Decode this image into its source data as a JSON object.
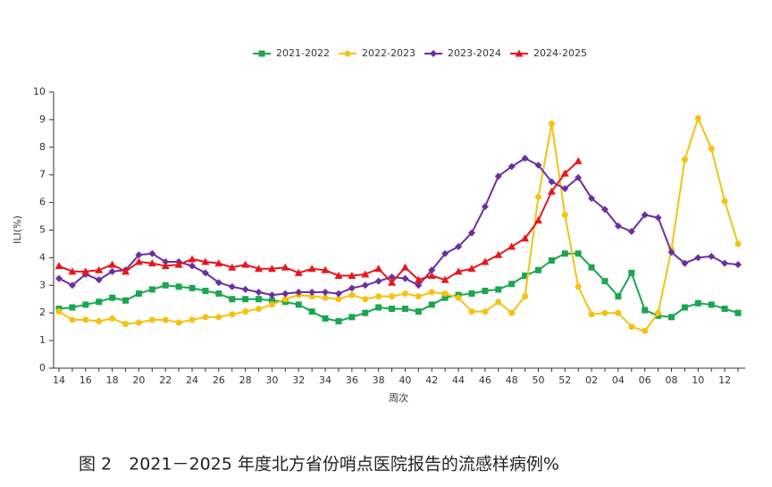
{
  "chart_data": {
    "type": "line",
    "caption": "图 2　2021－2025 年度北方省份哨点医院报告的流感样病例%",
    "xlabel": "周次",
    "ylabel": "ILI(%)",
    "legend": "top",
    "grid": false,
    "categories": [
      "14",
      null,
      "16",
      null,
      "18",
      null,
      "20",
      null,
      "22",
      null,
      "24",
      null,
      "26",
      null,
      "28",
      null,
      "30",
      null,
      "32",
      null,
      "34",
      null,
      "36",
      null,
      "38",
      null,
      "40",
      null,
      "42",
      null,
      "44",
      null,
      "46",
      null,
      "48",
      null,
      "50",
      null,
      "52",
      null,
      "02",
      null,
      "04",
      null,
      "06",
      null,
      "08",
      null,
      "10",
      null,
      "12",
      null
    ],
    "ylim": [
      0,
      10
    ],
    "yticks": [
      0,
      1,
      2,
      3,
      4,
      5,
      6,
      7,
      8,
      9,
      10
    ],
    "series": [
      {
        "name": "2021-2022",
        "color": "#1aa64f",
        "marker": "square",
        "values": [
          2.15,
          2.2,
          2.3,
          2.4,
          2.55,
          2.45,
          2.7,
          2.85,
          3.0,
          2.95,
          2.9,
          2.8,
          2.7,
          2.5,
          2.5,
          2.5,
          2.45,
          2.4,
          2.3,
          2.05,
          1.8,
          1.7,
          1.85,
          2.0,
          2.2,
          2.15,
          2.15,
          2.05,
          2.3,
          2.55,
          2.65,
          2.7,
          2.8,
          2.85,
          3.05,
          3.35,
          3.55,
          3.9,
          4.15,
          4.15,
          3.65,
          3.15,
          2.6,
          3.45,
          2.1,
          1.9,
          1.85,
          2.2,
          2.35,
          2.3,
          2.15,
          2.0
        ]
      },
      {
        "name": "2022-2023",
        "color": "#f5c211",
        "marker": "circle",
        "values": [
          2.05,
          1.75,
          1.75,
          1.7,
          1.8,
          1.6,
          1.65,
          1.75,
          1.75,
          1.65,
          1.75,
          1.85,
          1.85,
          1.95,
          2.05,
          2.15,
          2.3,
          2.5,
          2.65,
          2.6,
          2.55,
          2.5,
          2.65,
          2.5,
          2.6,
          2.6,
          2.7,
          2.6,
          2.75,
          2.7,
          2.55,
          2.05,
          2.05,
          2.4,
          2.0,
          2.6,
          6.2,
          8.85,
          5.55,
          2.95,
          1.95,
          2.0,
          2.0,
          1.5,
          1.35,
          2.0,
          4.3,
          7.55,
          9.05,
          7.95,
          6.05,
          4.5
        ]
      },
      {
        "name": "2023-2024",
        "color": "#6b2fa0",
        "marker": "diamond",
        "values": [
          3.25,
          3.0,
          3.4,
          3.2,
          3.5,
          3.55,
          4.1,
          4.15,
          3.85,
          3.85,
          3.7,
          3.45,
          3.1,
          2.95,
          2.85,
          2.75,
          2.65,
          2.7,
          2.75,
          2.75,
          2.75,
          2.7,
          2.9,
          3.0,
          3.15,
          3.3,
          3.25,
          3.0,
          3.55,
          4.15,
          4.4,
          4.9,
          5.85,
          6.95,
          7.3,
          7.6,
          7.35,
          6.75,
          6.5,
          6.9,
          6.15,
          5.75,
          5.15,
          4.95,
          5.55,
          5.45,
          4.2,
          3.8,
          4.0,
          4.05,
          3.8,
          3.75
        ]
      },
      {
        "name": "2024-2025",
        "color": "#e8161b",
        "marker": "triangle",
        "values": [
          3.7,
          3.5,
          3.5,
          3.55,
          3.75,
          3.5,
          3.85,
          3.8,
          3.7,
          3.75,
          3.95,
          3.85,
          3.8,
          3.65,
          3.75,
          3.6,
          3.6,
          3.65,
          3.45,
          3.6,
          3.55,
          3.35,
          3.35,
          3.4,
          3.6,
          3.1,
          3.65,
          3.2,
          3.35,
          3.2,
          3.5,
          3.6,
          3.85,
          4.1,
          4.4,
          4.7,
          5.35,
          6.4,
          7.05,
          7.5,
          null,
          null,
          null,
          null,
          null,
          null,
          null,
          null,
          null,
          null,
          null,
          null
        ]
      }
    ]
  }
}
